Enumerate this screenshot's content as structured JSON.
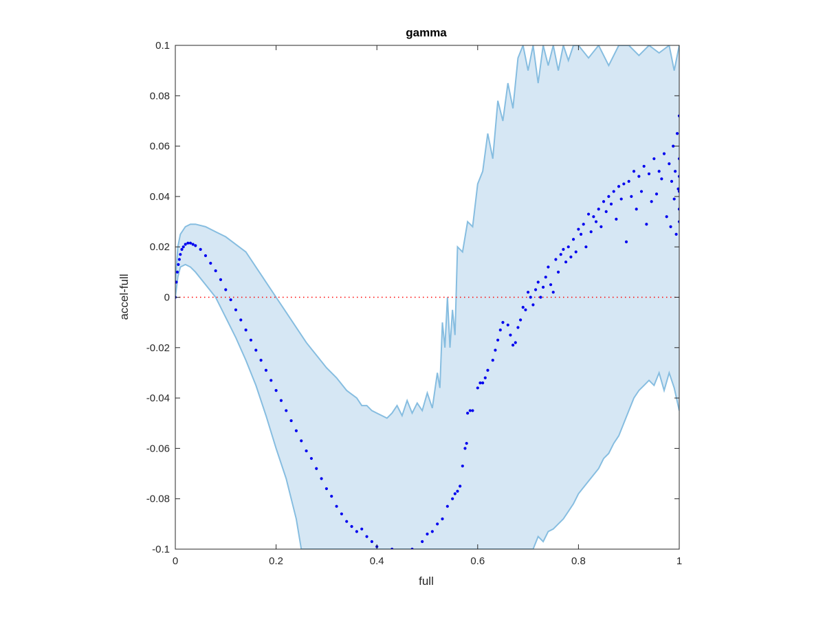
{
  "chart_data": {
    "type": "scatter",
    "title": "gamma",
    "xlabel": "full",
    "ylabel": "accel-full",
    "xlim": [
      0,
      1
    ],
    "ylim": [
      -0.1,
      0.1
    ],
    "x_ticks": [
      0,
      0.2,
      0.4,
      0.6,
      0.8,
      1
    ],
    "x_tick_labels": [
      "0",
      "0.2",
      "0.4",
      "0.6",
      "0.8",
      "1"
    ],
    "y_ticks": [
      -0.1,
      -0.08,
      -0.06,
      -0.04,
      -0.02,
      0,
      0.02,
      0.04,
      0.06,
      0.08,
      0.1
    ],
    "y_tick_labels": [
      "-0.1",
      "-0.08",
      "-0.06",
      "-0.04",
      "-0.02",
      "0",
      "0.02",
      "0.04",
      "0.06",
      "0.08",
      "0.1"
    ],
    "grid": false,
    "reference_line": {
      "y": 0,
      "style": "dotted",
      "color": "#ff0000"
    },
    "colors": {
      "points": "#0000ee",
      "band_fill": "#d6e7f4",
      "band_edge": "#86bde0",
      "axes": "#262626"
    },
    "band": {
      "upper": [
        [
          0,
          0.006
        ],
        [
          0.005,
          0.02
        ],
        [
          0.01,
          0.025
        ],
        [
          0.02,
          0.028
        ],
        [
          0.03,
          0.029
        ],
        [
          0.04,
          0.029
        ],
        [
          0.06,
          0.028
        ],
        [
          0.08,
          0.026
        ],
        [
          0.1,
          0.024
        ],
        [
          0.12,
          0.021
        ],
        [
          0.14,
          0.018
        ],
        [
          0.16,
          0.012
        ],
        [
          0.18,
          0.006
        ],
        [
          0.2,
          0.0
        ],
        [
          0.22,
          -0.006
        ],
        [
          0.24,
          -0.012
        ],
        [
          0.26,
          -0.018
        ],
        [
          0.28,
          -0.023
        ],
        [
          0.3,
          -0.028
        ],
        [
          0.32,
          -0.032
        ],
        [
          0.34,
          -0.037
        ],
        [
          0.36,
          -0.04
        ],
        [
          0.37,
          -0.043
        ],
        [
          0.38,
          -0.043
        ],
        [
          0.39,
          -0.045
        ],
        [
          0.4,
          -0.046
        ],
        [
          0.41,
          -0.047
        ],
        [
          0.42,
          -0.048
        ],
        [
          0.43,
          -0.046
        ],
        [
          0.44,
          -0.043
        ],
        [
          0.45,
          -0.047
        ],
        [
          0.46,
          -0.041
        ],
        [
          0.47,
          -0.046
        ],
        [
          0.48,
          -0.042
        ],
        [
          0.49,
          -0.045
        ],
        [
          0.5,
          -0.038
        ],
        [
          0.51,
          -0.044
        ],
        [
          0.52,
          -0.03
        ],
        [
          0.525,
          -0.036
        ],
        [
          0.53,
          -0.01
        ],
        [
          0.535,
          -0.02
        ],
        [
          0.54,
          0.0
        ],
        [
          0.545,
          -0.02
        ],
        [
          0.55,
          -0.005
        ],
        [
          0.555,
          -0.015
        ],
        [
          0.56,
          0.02
        ],
        [
          0.57,
          0.018
        ],
        [
          0.58,
          0.03
        ],
        [
          0.59,
          0.028
        ],
        [
          0.6,
          0.045
        ],
        [
          0.61,
          0.05
        ],
        [
          0.62,
          0.065
        ],
        [
          0.63,
          0.055
        ],
        [
          0.64,
          0.078
        ],
        [
          0.65,
          0.07
        ],
        [
          0.66,
          0.085
        ],
        [
          0.67,
          0.075
        ],
        [
          0.68,
          0.095
        ],
        [
          0.69,
          0.1
        ],
        [
          0.7,
          0.09
        ],
        [
          0.71,
          0.1
        ],
        [
          0.72,
          0.085
        ],
        [
          0.73,
          0.1
        ],
        [
          0.74,
          0.092
        ],
        [
          0.75,
          0.1
        ],
        [
          0.76,
          0.09
        ],
        [
          0.77,
          0.1
        ],
        [
          0.78,
          0.094
        ],
        [
          0.79,
          0.1
        ],
        [
          0.8,
          0.1
        ],
        [
          0.82,
          0.095
        ],
        [
          0.84,
          0.1
        ],
        [
          0.86,
          0.092
        ],
        [
          0.88,
          0.1
        ],
        [
          0.9,
          0.1
        ],
        [
          0.92,
          0.096
        ],
        [
          0.94,
          0.1
        ],
        [
          0.96,
          0.097
        ],
        [
          0.98,
          0.1
        ],
        [
          0.99,
          0.09
        ],
        [
          1.0,
          0.1
        ]
      ],
      "lower": [
        [
          0,
          0.0
        ],
        [
          0.005,
          0.008
        ],
        [
          0.01,
          0.012
        ],
        [
          0.02,
          0.013
        ],
        [
          0.03,
          0.012
        ],
        [
          0.04,
          0.01
        ],
        [
          0.06,
          0.005
        ],
        [
          0.08,
          0.0
        ],
        [
          0.1,
          -0.008
        ],
        [
          0.12,
          -0.016
        ],
        [
          0.14,
          -0.025
        ],
        [
          0.16,
          -0.035
        ],
        [
          0.18,
          -0.047
        ],
        [
          0.2,
          -0.06
        ],
        [
          0.22,
          -0.072
        ],
        [
          0.24,
          -0.088
        ],
        [
          0.25,
          -0.1
        ],
        [
          0.71,
          -0.1
        ],
        [
          0.72,
          -0.095
        ],
        [
          0.73,
          -0.097
        ],
        [
          0.74,
          -0.093
        ],
        [
          0.75,
          -0.092
        ],
        [
          0.76,
          -0.09
        ],
        [
          0.77,
          -0.088
        ],
        [
          0.78,
          -0.085
        ],
        [
          0.79,
          -0.082
        ],
        [
          0.8,
          -0.078
        ],
        [
          0.82,
          -0.073
        ],
        [
          0.84,
          -0.068
        ],
        [
          0.85,
          -0.064
        ],
        [
          0.86,
          -0.062
        ],
        [
          0.87,
          -0.058
        ],
        [
          0.88,
          -0.055
        ],
        [
          0.89,
          -0.05
        ],
        [
          0.9,
          -0.045
        ],
        [
          0.91,
          -0.04
        ],
        [
          0.92,
          -0.037
        ],
        [
          0.93,
          -0.035
        ],
        [
          0.94,
          -0.033
        ],
        [
          0.95,
          -0.035
        ],
        [
          0.96,
          -0.03
        ],
        [
          0.97,
          -0.037
        ],
        [
          0.98,
          -0.03
        ],
        [
          0.99,
          -0.036
        ],
        [
          1.0,
          -0.045
        ]
      ]
    },
    "series": [
      {
        "points": [
          [
            0.0,
            0.0
          ],
          [
            0.002,
            0.006
          ],
          [
            0.004,
            0.01
          ],
          [
            0.006,
            0.013
          ],
          [
            0.008,
            0.015
          ],
          [
            0.01,
            0.017
          ],
          [
            0.013,
            0.019
          ],
          [
            0.016,
            0.02
          ],
          [
            0.02,
            0.021
          ],
          [
            0.025,
            0.0215
          ],
          [
            0.03,
            0.0215
          ],
          [
            0.035,
            0.021
          ],
          [
            0.04,
            0.0205
          ],
          [
            0.05,
            0.019
          ],
          [
            0.06,
            0.0165
          ],
          [
            0.07,
            0.0135
          ],
          [
            0.08,
            0.0105
          ],
          [
            0.09,
            0.007
          ],
          [
            0.1,
            0.003
          ],
          [
            0.11,
            -0.001
          ],
          [
            0.12,
            -0.005
          ],
          [
            0.13,
            -0.009
          ],
          [
            0.14,
            -0.013
          ],
          [
            0.15,
            -0.017
          ],
          [
            0.16,
            -0.021
          ],
          [
            0.17,
            -0.025
          ],
          [
            0.18,
            -0.029
          ],
          [
            0.19,
            -0.033
          ],
          [
            0.2,
            -0.037
          ],
          [
            0.21,
            -0.041
          ],
          [
            0.22,
            -0.045
          ],
          [
            0.23,
            -0.049
          ],
          [
            0.24,
            -0.053
          ],
          [
            0.25,
            -0.057
          ],
          [
            0.26,
            -0.061
          ],
          [
            0.27,
            -0.064
          ],
          [
            0.28,
            -0.068
          ],
          [
            0.29,
            -0.072
          ],
          [
            0.3,
            -0.076
          ],
          [
            0.31,
            -0.079
          ],
          [
            0.32,
            -0.083
          ],
          [
            0.33,
            -0.086
          ],
          [
            0.34,
            -0.089
          ],
          [
            0.35,
            -0.091
          ],
          [
            0.36,
            -0.093
          ],
          [
            0.37,
            -0.092
          ],
          [
            0.38,
            -0.095
          ],
          [
            0.39,
            -0.097
          ],
          [
            0.4,
            -0.099
          ],
          [
            0.43,
            -0.1
          ],
          [
            0.47,
            -0.1
          ],
          [
            0.49,
            -0.097
          ],
          [
            0.5,
            -0.094
          ],
          [
            0.51,
            -0.093
          ],
          [
            0.52,
            -0.09
          ],
          [
            0.53,
            -0.088
          ],
          [
            0.54,
            -0.083
          ],
          [
            0.55,
            -0.08
          ],
          [
            0.555,
            -0.078
          ],
          [
            0.56,
            -0.077
          ],
          [
            0.565,
            -0.075
          ],
          [
            0.57,
            -0.067
          ],
          [
            0.575,
            -0.06
          ],
          [
            0.578,
            -0.058
          ],
          [
            0.58,
            -0.046
          ],
          [
            0.585,
            -0.045
          ],
          [
            0.59,
            -0.045
          ],
          [
            0.6,
            -0.036
          ],
          [
            0.605,
            -0.034
          ],
          [
            0.61,
            -0.034
          ],
          [
            0.615,
            -0.032
          ],
          [
            0.62,
            -0.029
          ],
          [
            0.63,
            -0.025
          ],
          [
            0.635,
            -0.021
          ],
          [
            0.64,
            -0.017
          ],
          [
            0.645,
            -0.013
          ],
          [
            0.65,
            -0.01
          ],
          [
            0.66,
            -0.011
          ],
          [
            0.665,
            -0.015
          ],
          [
            0.67,
            -0.019
          ],
          [
            0.675,
            -0.018
          ],
          [
            0.68,
            -0.012
          ],
          [
            0.685,
            -0.009
          ],
          [
            0.69,
            -0.004
          ],
          [
            0.695,
            -0.005
          ],
          [
            0.7,
            0.002
          ],
          [
            0.705,
            0.0
          ],
          [
            0.71,
            -0.003
          ],
          [
            0.715,
            0.003
          ],
          [
            0.72,
            0.006
          ],
          [
            0.725,
            0.0
          ],
          [
            0.73,
            0.004
          ],
          [
            0.735,
            0.008
          ],
          [
            0.74,
            0.012
          ],
          [
            0.745,
            0.005
          ],
          [
            0.75,
            0.002
          ],
          [
            0.755,
            0.015
          ],
          [
            0.76,
            0.01
          ],
          [
            0.765,
            0.017
          ],
          [
            0.77,
            0.019
          ],
          [
            0.775,
            0.014
          ],
          [
            0.78,
            0.02
          ],
          [
            0.785,
            0.016
          ],
          [
            0.79,
            0.023
          ],
          [
            0.795,
            0.018
          ],
          [
            0.8,
            0.027
          ],
          [
            0.805,
            0.025
          ],
          [
            0.81,
            0.029
          ],
          [
            0.815,
            0.02
          ],
          [
            0.82,
            0.033
          ],
          [
            0.825,
            0.026
          ],
          [
            0.83,
            0.032
          ],
          [
            0.835,
            0.03
          ],
          [
            0.84,
            0.035
          ],
          [
            0.845,
            0.028
          ],
          [
            0.85,
            0.038
          ],
          [
            0.855,
            0.034
          ],
          [
            0.86,
            0.04
          ],
          [
            0.865,
            0.037
          ],
          [
            0.87,
            0.042
          ],
          [
            0.875,
            0.031
          ],
          [
            0.88,
            0.044
          ],
          [
            0.885,
            0.039
          ],
          [
            0.89,
            0.045
          ],
          [
            0.895,
            0.022
          ],
          [
            0.9,
            0.046
          ],
          [
            0.905,
            0.04
          ],
          [
            0.91,
            0.05
          ],
          [
            0.915,
            0.035
          ],
          [
            0.92,
            0.048
          ],
          [
            0.925,
            0.042
          ],
          [
            0.93,
            0.052
          ],
          [
            0.935,
            0.029
          ],
          [
            0.94,
            0.049
          ],
          [
            0.945,
            0.038
          ],
          [
            0.95,
            0.055
          ],
          [
            0.955,
            0.041
          ],
          [
            0.96,
            0.05
          ],
          [
            0.965,
            0.047
          ],
          [
            0.97,
            0.057
          ],
          [
            0.975,
            0.032
          ],
          [
            0.98,
            0.053
          ],
          [
            0.983,
            0.028
          ],
          [
            0.985,
            0.046
          ],
          [
            0.988,
            0.06
          ],
          [
            0.99,
            0.039
          ],
          [
            0.992,
            0.05
          ],
          [
            0.994,
            0.025
          ],
          [
            0.996,
            0.065
          ],
          [
            0.998,
            0.043
          ],
          [
            1.0,
            0.072
          ],
          [
            1.0,
            0.035
          ],
          [
            1.0,
            0.048
          ],
          [
            1.0,
            0.055
          ],
          [
            1.0,
            0.03
          ],
          [
            1.0,
            0.042
          ]
        ]
      }
    ]
  }
}
